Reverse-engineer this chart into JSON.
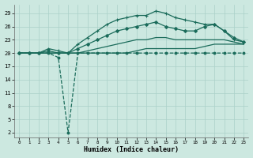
{
  "xlabel": "Humidex (Indice chaleur)",
  "background_color": "#cce8e0",
  "grid_color": "#aad0c8",
  "line_color": "#1a6b5a",
  "xlim": [
    -0.5,
    23.5
  ],
  "ylim": [
    1,
    31
  ],
  "xticks": [
    0,
    1,
    2,
    3,
    4,
    5,
    6,
    7,
    8,
    9,
    10,
    11,
    12,
    13,
    14,
    15,
    16,
    17,
    18,
    19,
    20,
    21,
    22,
    23
  ],
  "yticks": [
    2,
    5,
    8,
    11,
    14,
    17,
    20,
    23,
    26,
    29
  ],
  "series": [
    {
      "x": [
        0,
        1,
        2,
        3,
        4,
        5,
        6,
        7,
        8,
        9,
        10,
        11,
        12,
        13,
        14,
        15,
        16,
        17,
        18,
        19,
        20,
        21,
        22,
        23
      ],
      "y": [
        20,
        20,
        20,
        20,
        19,
        2,
        20,
        20,
        20,
        20,
        20,
        20,
        20,
        20,
        20,
        20,
        20,
        20,
        20,
        20,
        20,
        20,
        20,
        20
      ],
      "marker": "o",
      "markersize": 2.0,
      "linewidth": 0.9,
      "linestyle": "--"
    },
    {
      "x": [
        0,
        1,
        2,
        3,
        4,
        5,
        6,
        7,
        8,
        9,
        10,
        11,
        12,
        13,
        14,
        15,
        16,
        17,
        18,
        19,
        20,
        21,
        22,
        23
      ],
      "y": [
        20,
        20,
        20,
        21,
        20.5,
        20,
        22,
        23.5,
        25,
        26.5,
        27.5,
        28,
        28.5,
        28.5,
        29.5,
        29,
        28,
        27.5,
        27,
        26.5,
        26.5,
        25,
        23,
        22.5
      ],
      "marker": "+",
      "markersize": 3.5,
      "linewidth": 0.9,
      "linestyle": "-"
    },
    {
      "x": [
        0,
        1,
        2,
        3,
        4,
        5,
        6,
        7,
        8,
        9,
        10,
        11,
        12,
        13,
        14,
        15,
        16,
        17,
        18,
        19,
        20,
        21,
        22,
        23
      ],
      "y": [
        20,
        20,
        20,
        20.5,
        20,
        20,
        21,
        22,
        23,
        24,
        25,
        25.5,
        26,
        26.5,
        27,
        26,
        25.5,
        25,
        25,
        26,
        26.5,
        25,
        23.5,
        22.5
      ],
      "marker": "D",
      "markersize": 2.0,
      "linewidth": 0.9,
      "linestyle": "-"
    },
    {
      "x": [
        0,
        1,
        2,
        3,
        4,
        5,
        6,
        7,
        8,
        9,
        10,
        11,
        12,
        13,
        14,
        15,
        16,
        17,
        18,
        19,
        20,
        21,
        22,
        23
      ],
      "y": [
        20,
        20,
        20,
        20,
        20,
        20,
        20,
        20.5,
        21,
        21.5,
        22,
        22.5,
        23,
        23,
        23.5,
        23.5,
        23,
        23,
        23,
        23,
        23,
        23,
        22.5,
        22
      ],
      "marker": null,
      "markersize": 0,
      "linewidth": 0.9,
      "linestyle": "-"
    },
    {
      "x": [
        0,
        1,
        2,
        3,
        4,
        5,
        6,
        7,
        8,
        9,
        10,
        11,
        12,
        13,
        14,
        15,
        16,
        17,
        18,
        19,
        20,
        21,
        22,
        23
      ],
      "y": [
        20,
        20,
        20,
        20,
        20,
        20,
        20,
        20,
        20,
        20,
        20,
        20,
        20.5,
        21,
        21,
        21,
        21,
        21,
        21,
        21.5,
        22,
        22,
        22,
        22
      ],
      "marker": null,
      "markersize": 0,
      "linewidth": 0.9,
      "linestyle": "-"
    }
  ]
}
